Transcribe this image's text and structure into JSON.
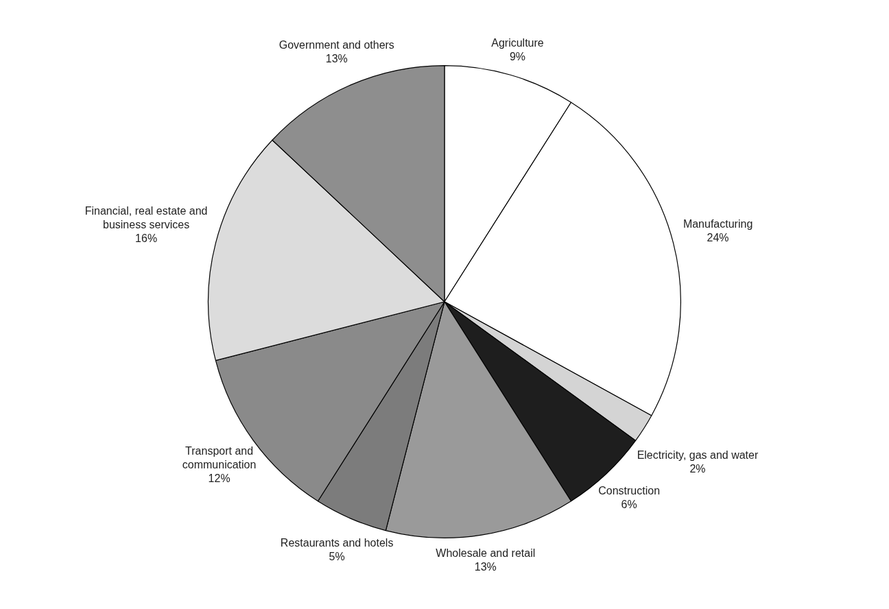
{
  "chart_data": {
    "type": "pie",
    "categories": [
      "Agriculture",
      "Manufacturing",
      "Electricity, gas and water",
      "Construction",
      "Wholesale and retail",
      "Restaurants and hotels",
      "Transport and communication",
      "Financial, real estate and business services",
      "Government and others"
    ],
    "values": [
      9,
      24,
      2,
      6,
      13,
      5,
      12,
      16,
      13
    ],
    "colors": [
      "#ffffff",
      "#ffffff",
      "#d4d4d4",
      "#1e1e1e",
      "#9a9a9a",
      "#7c7c7c",
      "#8a8a8a",
      "#dcdcdc",
      "#8e8e8e"
    ],
    "value_labels": [
      "9%",
      "24%",
      "2%",
      "6%",
      "13%",
      "5%",
      "12%",
      "16%",
      "13%"
    ],
    "legend": false
  }
}
